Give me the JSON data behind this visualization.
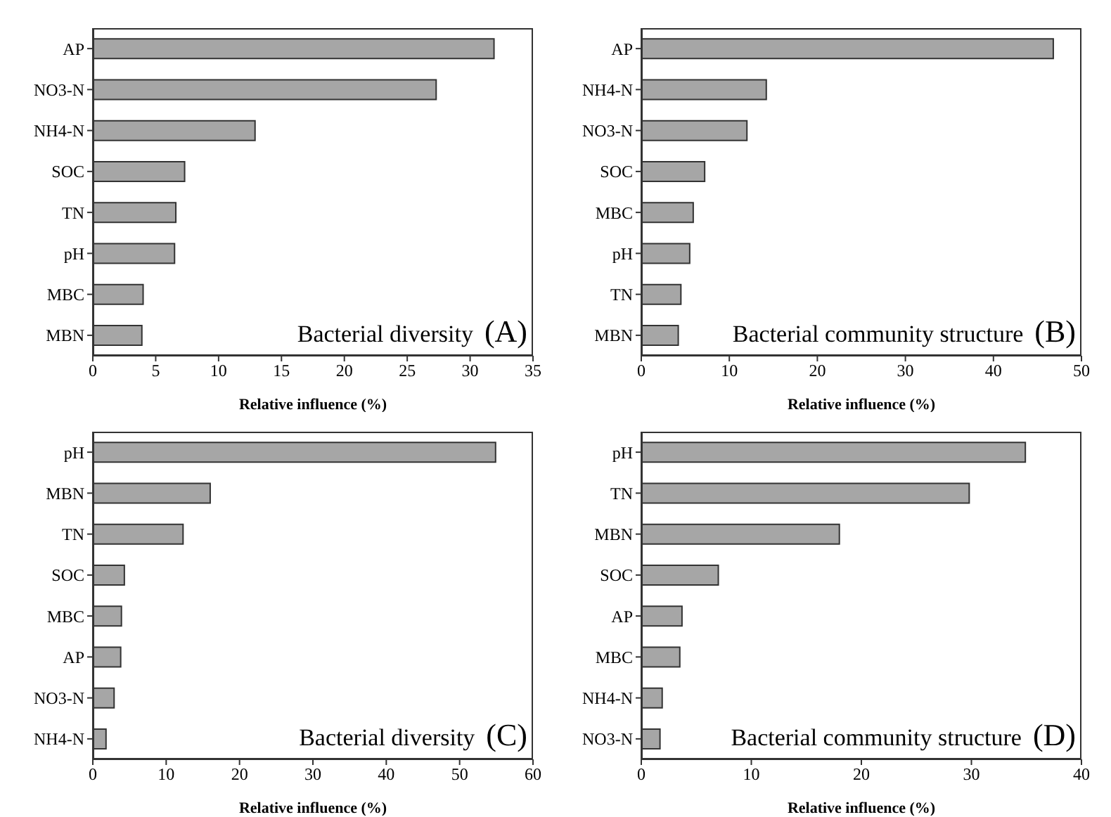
{
  "chart_data": [
    {
      "type": "bar",
      "orientation": "horizontal",
      "categories": [
        "AP",
        "NO3-N",
        "NH4-N",
        "SOC",
        "TN",
        "pH",
        "MBC",
        "MBN"
      ],
      "values": [
        31.9,
        27.3,
        12.9,
        7.3,
        6.6,
        6.5,
        4.0,
        3.9
      ],
      "color": "#a6a6a6",
      "xlim": [
        0,
        35
      ],
      "xticks": [
        0,
        5,
        10,
        15,
        20,
        25,
        30,
        35
      ],
      "xlabel": "Relative influence (%)",
      "annotations": [
        "Bacterial diversity",
        "(A)"
      ],
      "grid": false,
      "legend": false
    },
    {
      "type": "bar",
      "orientation": "horizontal",
      "categories": [
        "AP",
        "NH4-N",
        "NO3-N",
        "SOC",
        "MBC",
        "pH",
        "TN",
        "MBN"
      ],
      "values": [
        46.8,
        14.2,
        12.0,
        7.2,
        5.9,
        5.5,
        4.5,
        4.2
      ],
      "color": "#a6a6a6",
      "xlim": [
        0,
        50
      ],
      "xticks": [
        0,
        10,
        20,
        30,
        40,
        50
      ],
      "xlabel": "Relative influence (%)",
      "annotations": [
        "Bacterial community structure",
        "(B)"
      ],
      "grid": false,
      "legend": false
    },
    {
      "type": "bar",
      "orientation": "horizontal",
      "categories": [
        "pH",
        "MBN",
        "TN",
        "SOC",
        "MBC",
        "AP",
        "NO3-N",
        "NH4-N"
      ],
      "values": [
        54.9,
        16.0,
        12.3,
        4.3,
        3.9,
        3.8,
        2.9,
        1.8
      ],
      "color": "#a6a6a6",
      "xlim": [
        0,
        60
      ],
      "xticks": [
        0,
        10,
        20,
        30,
        40,
        50,
        60
      ],
      "xlabel": "Relative influence (%)",
      "annotations": [
        "Bacterial diversity",
        "(C)"
      ],
      "grid": false,
      "legend": false
    },
    {
      "type": "bar",
      "orientation": "horizontal",
      "categories": [
        "pH",
        "TN",
        "MBN",
        "SOC",
        "AP",
        "MBC",
        "NH4-N",
        "NO3-N"
      ],
      "values": [
        34.9,
        29.8,
        18.0,
        7.0,
        3.7,
        3.5,
        1.9,
        1.7
      ],
      "color": "#a6a6a6",
      "xlim": [
        0,
        40
      ],
      "xticks": [
        0,
        10,
        20,
        30,
        40
      ],
      "xlabel": "Relative influence (%)",
      "annotations": [
        "Bacterial community structure",
        "(D)"
      ],
      "grid": false,
      "legend": false
    }
  ]
}
